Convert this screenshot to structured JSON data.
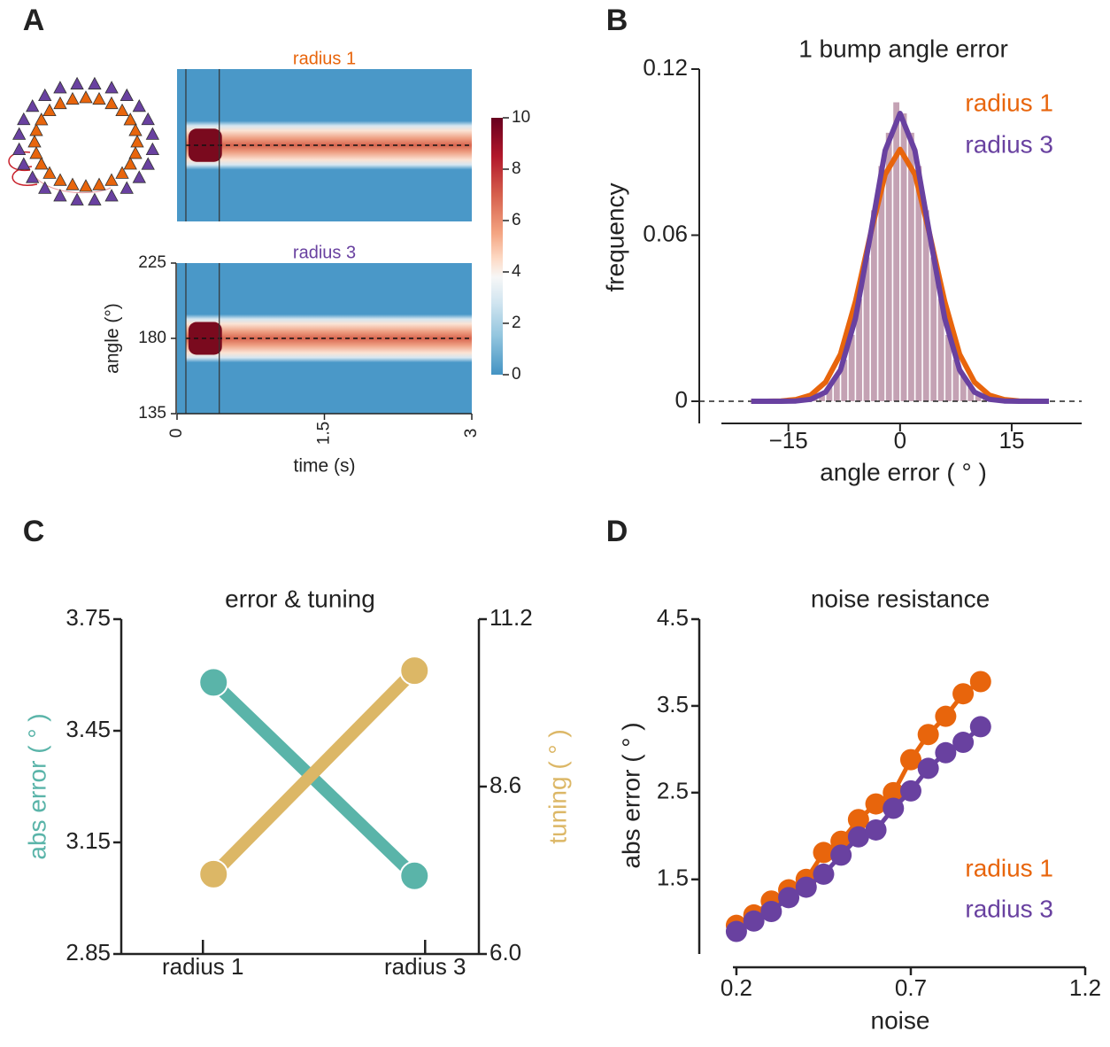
{
  "panel_labels": [
    "A",
    "B",
    "C",
    "D"
  ],
  "chart_data": [
    {
      "type": "heatmap",
      "title": "radius 1",
      "title_color": "#e8650c",
      "xlim": [
        0,
        3
      ],
      "ylim": [
        135,
        225
      ],
      "bump_center": 180,
      "stimulus": [
        0.09,
        0.43
      ]
    },
    {
      "type": "heatmap",
      "title": "radius 3",
      "title_color": "#6941a0",
      "xlim": [
        0,
        3
      ],
      "xticks": [
        0,
        1.5,
        3
      ],
      "ylim": [
        135,
        225
      ],
      "yticks": [
        135,
        180,
        225
      ],
      "xlabel": "time (s)",
      "ylabel": "angle (°)",
      "bump_center": 180,
      "stimulus": [
        0.09,
        0.43
      ]
    },
    {
      "type": "colorbar",
      "lim": [
        0,
        10
      ],
      "ticks": [
        0,
        2,
        4,
        6,
        8,
        10
      ]
    },
    {
      "type": "histogram",
      "title": "1 bump angle error",
      "xlabel": "angle error ( ° )",
      "ylabel": "frequency",
      "color": "#c4a2b4",
      "bins": [
        -12,
        -11,
        -10,
        -9,
        -8,
        -7,
        -6,
        -5,
        -4,
        -3,
        -2,
        -1,
        0,
        1,
        2,
        3,
        4,
        5,
        6,
        7,
        8,
        9,
        10,
        11,
        12
      ],
      "values": [
        0.001,
        0.002,
        0.005,
        0.009,
        0.015,
        0.024,
        0.037,
        0.052,
        0.069,
        0.085,
        0.097,
        0.108,
        0.104,
        0.097,
        0.085,
        0.069,
        0.052,
        0.037,
        0.024,
        0.015,
        0.009,
        0.005,
        0.002,
        0.001
      ],
      "xlim": [
        -24,
        24.4
      ],
      "xticks": [
        {
          "value": -15,
          "label": "−15"
        },
        0,
        15
      ],
      "ylim": [
        -0.008,
        0.12
      ],
      "yticks": [
        0,
        0.06,
        0.12
      ],
      "series": [
        {
          "name": "radius 1",
          "color": "#e8650c",
          "x": [
            -20,
            -18,
            -16,
            -14,
            -12,
            -10,
            -8,
            -6,
            -4,
            -2,
            0,
            2,
            4,
            6,
            8,
            10,
            12,
            14,
            16,
            18,
            20
          ],
          "values": [
            0,
            0,
            0.0001,
            0.0006,
            0.0022,
            0.0069,
            0.017,
            0.036,
            0.06,
            0.082,
            0.091,
            0.082,
            0.06,
            0.036,
            0.017,
            0.0069,
            0.0022,
            0.0006,
            0.0001,
            0,
            0
          ]
        },
        {
          "name": "radius 3",
          "color": "#6941a0",
          "x": [
            -20,
            -18,
            -16,
            -14,
            -12,
            -10,
            -8,
            -6,
            -4,
            -2,
            0,
            2,
            4,
            6,
            8,
            10,
            12,
            14,
            16,
            18,
            20
          ],
          "values": [
            0,
            0,
            0,
            0.0001,
            0.0007,
            0.0033,
            0.0113,
            0.0299,
            0.0598,
            0.0906,
            0.104,
            0.0906,
            0.0598,
            0.0299,
            0.0113,
            0.0033,
            0.0007,
            0.0001,
            0,
            0,
            0
          ]
        }
      ]
    },
    {
      "type": "dual_line",
      "title": "error & tuning",
      "categories": [
        "radius 1",
        "radius 3"
      ],
      "ylabel": "abs error ( ° )",
      "y2label": "tuning ( ° )",
      "ylim": [
        2.85,
        3.75
      ],
      "yticks": [
        2.85,
        3.15,
        3.45,
        3.75
      ],
      "y2lim": [
        6,
        11.2
      ],
      "y2ticks": [
        {
          "value": 6,
          "label": "6.0"
        },
        8.6,
        11.2
      ],
      "series": [
        {
          "color": "#5ab4a9",
          "values": [
            3.58,
            3.06
          ]
        },
        {
          "color": "#dcb766",
          "values": [
            7.24,
            10.4
          ],
          "axis": "y2"
        }
      ]
    },
    {
      "type": "line",
      "title": "noise resistance",
      "xlabel": "noise",
      "ylabel": "abs error ( ° )",
      "x": [
        0.2,
        0.25,
        0.3,
        0.35,
        0.4,
        0.45,
        0.5,
        0.55,
        0.6,
        0.65,
        0.7,
        0.75,
        0.8,
        0.85,
        0.9
      ],
      "xlim": [
        0.19,
        1.2
      ],
      "xticks": [
        0.2,
        0.7,
        1.2
      ],
      "ylim": [
        0.64,
        4.5
      ],
      "yticks": [
        1.5,
        2.5,
        3.5,
        4.5
      ],
      "series": [
        {
          "name": "radius 1",
          "color": "#e8650c",
          "values": [
            0.97,
            1.09,
            1.25,
            1.38,
            1.5,
            1.81,
            1.94,
            2.19,
            2.37,
            2.5,
            2.88,
            3.17,
            3.38,
            3.64,
            3.78
          ]
        },
        {
          "name": "radius 3",
          "color": "#6941a0",
          "values": [
            0.9,
            1.02,
            1.13,
            1.29,
            1.41,
            1.56,
            1.78,
            1.99,
            2.07,
            2.32,
            2.52,
            2.78,
            2.96,
            3.08,
            3.26
          ]
        }
      ]
    }
  ]
}
